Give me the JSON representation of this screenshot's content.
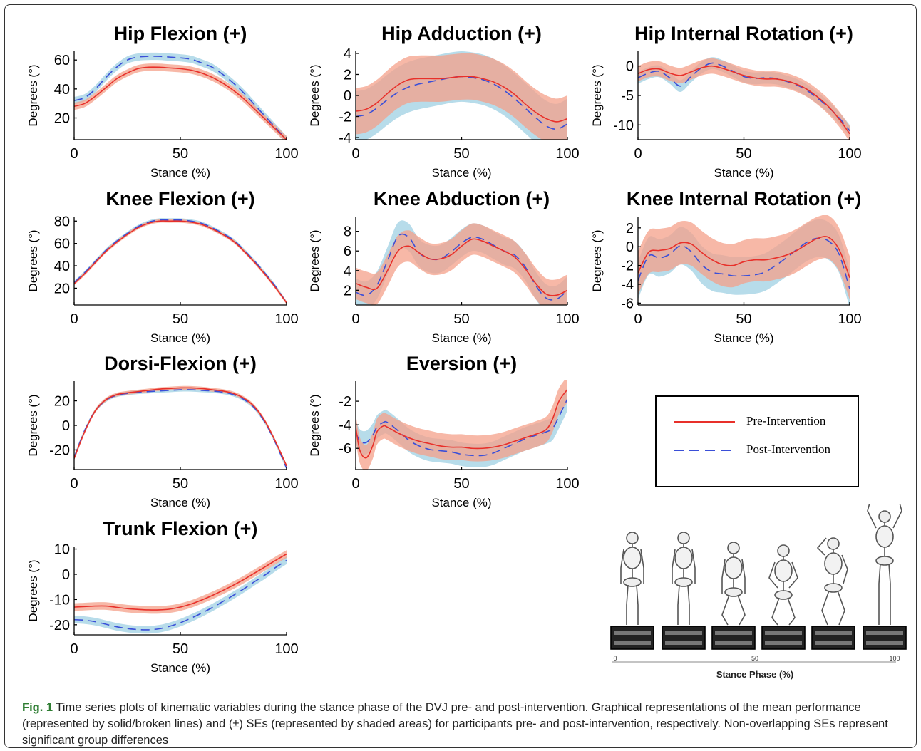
{
  "colors": {
    "pre_line": "#e8302a",
    "pre_band": "#f4a08a",
    "post_line": "#3a4fd8",
    "post_band": "#aad6e6"
  },
  "legend": {
    "pre_label": "Pre-Intervention",
    "post_label": "Post-Intervention"
  },
  "illustration": {
    "axis_label": "Stance Phase (%)",
    "ticks": [
      "0",
      "50",
      "100"
    ]
  },
  "caption": {
    "label": "Fig. 1",
    "text": " Time series plots of kinematic variables during the stance phase of the DVJ pre- and post-intervention. Graphical representations of the mean performance (represented by solid/broken lines) and (±) SEs (represented by shaded areas) for participants pre- and post-intervention, respectively. Non-overlapping SEs represent significant group differences"
  },
  "chart_data": [
    {
      "type": "line",
      "title": "Hip Flexion (+)",
      "xlabel": "Stance (%)",
      "ylabel": "Degrees (°)",
      "xlim": [
        0,
        100
      ],
      "ylim": [
        5,
        66
      ],
      "xticks": [
        0,
        50,
        100
      ],
      "yticks": [
        20,
        40,
        60
      ],
      "x": [
        0,
        5,
        10,
        15,
        20,
        25,
        30,
        35,
        40,
        45,
        50,
        55,
        60,
        65,
        70,
        75,
        80,
        85,
        90,
        95,
        100
      ],
      "series": [
        {
          "name": "Pre-Intervention",
          "values": [
            28,
            30,
            35,
            41,
            47,
            51,
            54,
            55,
            55,
            54.5,
            54,
            53,
            51,
            48,
            44,
            39,
            33,
            26,
            19,
            12,
            5
          ],
          "se": 2.5
        },
        {
          "name": "Post-Intervention",
          "values": [
            32,
            34,
            40,
            48,
            55,
            60,
            62,
            62.5,
            62.5,
            62,
            61.5,
            60.5,
            58,
            55,
            50,
            44,
            37,
            29,
            21,
            13,
            5
          ],
          "se": 2.5
        }
      ]
    },
    {
      "type": "line",
      "title": "Hip Adduction (+)",
      "xlabel": "Stance (%)",
      "ylabel": "Degrees (°)",
      "xlim": [
        0,
        100
      ],
      "ylim": [
        -4.2,
        4.2
      ],
      "xticks": [
        0,
        50,
        100
      ],
      "yticks": [
        -4,
        -2,
        0,
        2,
        4
      ],
      "x": [
        0,
        5,
        10,
        15,
        20,
        25,
        30,
        35,
        40,
        45,
        50,
        55,
        60,
        65,
        70,
        75,
        80,
        85,
        90,
        95,
        100
      ],
      "series": [
        {
          "name": "Pre-Intervention",
          "values": [
            -1.5,
            -1.3,
            -0.7,
            0.2,
            1.0,
            1.5,
            1.6,
            1.6,
            1.6,
            1.7,
            1.8,
            1.8,
            1.6,
            1.3,
            0.8,
            0.1,
            -0.8,
            -1.6,
            -2.2,
            -2.5,
            -2.2
          ],
          "se": 2.2
        },
        {
          "name": "Post-Intervention",
          "values": [
            -2.0,
            -1.8,
            -1.2,
            -0.4,
            0.3,
            0.8,
            1.1,
            1.3,
            1.5,
            1.7,
            1.8,
            1.7,
            1.5,
            1.1,
            0.5,
            -0.3,
            -1.2,
            -2.1,
            -2.9,
            -3.2,
            -2.7
          ],
          "se": 2.4
        }
      ]
    },
    {
      "type": "line",
      "title": "Hip Internal Rotation (+)",
      "xlabel": "Stance (%)",
      "ylabel": "Degrees (°)",
      "xlim": [
        0,
        100
      ],
      "ylim": [
        -12.5,
        2.5
      ],
      "xticks": [
        0,
        50,
        100
      ],
      "yticks": [
        -10,
        -5,
        0
      ],
      "x": [
        0,
        5,
        10,
        15,
        20,
        25,
        30,
        35,
        40,
        45,
        50,
        55,
        60,
        65,
        70,
        75,
        80,
        85,
        90,
        95,
        100
      ],
      "series": [
        {
          "name": "Pre-Intervention",
          "values": [
            -1.3,
            -0.6,
            -0.5,
            -1.2,
            -1.6,
            -1.0,
            -0.3,
            0.0,
            -0.4,
            -1.0,
            -1.6,
            -2.0,
            -2.2,
            -2.2,
            -2.5,
            -3.1,
            -4.0,
            -5.3,
            -6.9,
            -9.0,
            -11.5
          ],
          "se": 1.3
        },
        {
          "name": "Post-Intervention",
          "values": [
            -2.0,
            -1.2,
            -0.9,
            -2.0,
            -3.4,
            -1.8,
            -0.3,
            0.5,
            0.0,
            -0.9,
            -1.8,
            -2.1,
            -2.0,
            -2.1,
            -2.6,
            -3.2,
            -4.2,
            -5.5,
            -7.0,
            -8.8,
            -11.0
          ],
          "se": 1.0
        }
      ]
    },
    {
      "type": "line",
      "title": "Knee Flexion (+)",
      "xlabel": "Stance (%)",
      "ylabel": "Degrees (°)",
      "xlim": [
        0,
        100
      ],
      "ylim": [
        5,
        84
      ],
      "xticks": [
        0,
        50,
        100
      ],
      "yticks": [
        20,
        40,
        60,
        80
      ],
      "x": [
        0,
        5,
        10,
        15,
        20,
        25,
        30,
        35,
        40,
        45,
        50,
        55,
        60,
        65,
        70,
        75,
        80,
        85,
        90,
        95,
        100
      ],
      "series": [
        {
          "name": "Pre-Intervention",
          "values": [
            24,
            33,
            43,
            53,
            61,
            68,
            74,
            78,
            80,
            80,
            80,
            79,
            77,
            73,
            68,
            62,
            53,
            43,
            32,
            20,
            7
          ],
          "se": 1.5
        },
        {
          "name": "Post-Intervention",
          "values": [
            25,
            34,
            44,
            54,
            62,
            69,
            75,
            79,
            81,
            81,
            81,
            80,
            78,
            74,
            69,
            63,
            54,
            44,
            33,
            21,
            7
          ],
          "se": 1.5
        }
      ]
    },
    {
      "type": "line",
      "title": "Knee Abduction (+)",
      "xlabel": "Stance (%)",
      "ylabel": "Degrees (°)",
      "xlim": [
        0,
        100
      ],
      "ylim": [
        0.5,
        9.5
      ],
      "xticks": [
        0,
        50,
        100
      ],
      "yticks": [
        2,
        4,
        6,
        8
      ],
      "x": [
        0,
        5,
        10,
        15,
        20,
        25,
        30,
        35,
        40,
        45,
        50,
        55,
        60,
        65,
        70,
        75,
        80,
        85,
        90,
        95,
        100
      ],
      "series": [
        {
          "name": "Pre-Intervention",
          "values": [
            2.7,
            2.3,
            2.2,
            4.0,
            6.0,
            6.5,
            5.8,
            5.2,
            5.2,
            5.6,
            6.5,
            7.2,
            7.0,
            6.5,
            6.0,
            5.4,
            4.2,
            2.7,
            1.6,
            1.5,
            2.0
          ],
          "se": 1.6
        },
        {
          "name": "Post-Intervention",
          "values": [
            1.8,
            1.5,
            2.5,
            5.0,
            7.5,
            7.4,
            5.8,
            5.2,
            5.2,
            5.9,
            6.8,
            7.4,
            7.2,
            6.6,
            6.0,
            5.6,
            4.4,
            2.5,
            1.2,
            1.1,
            2.0
          ],
          "se": 1.4
        }
      ]
    },
    {
      "type": "line",
      "title": "Knee Internal Rotation (+)",
      "xlabel": "Stance (%)",
      "ylabel": "Degrees (°)",
      "xlim": [
        0,
        100
      ],
      "ylim": [
        -6.2,
        3.2
      ],
      "xticks": [
        0,
        50,
        100
      ],
      "yticks": [
        -6,
        -4,
        -2,
        0,
        2
      ],
      "x": [
        0,
        5,
        10,
        15,
        20,
        25,
        30,
        35,
        40,
        45,
        50,
        55,
        60,
        65,
        70,
        75,
        80,
        85,
        90,
        95,
        100
      ],
      "series": [
        {
          "name": "Pre-Intervention",
          "values": [
            -2.8,
            -0.6,
            -0.4,
            -0.2,
            0.4,
            0.3,
            -0.6,
            -1.4,
            -1.9,
            -2.0,
            -1.6,
            -1.4,
            -1.4,
            -1.2,
            -0.9,
            -0.4,
            0.3,
            0.9,
            1.0,
            -0.3,
            -3.3
          ],
          "se": 2.3
        },
        {
          "name": "Post-Intervention",
          "values": [
            -3.6,
            -1.0,
            -1.2,
            -0.8,
            0.1,
            -0.5,
            -1.9,
            -2.7,
            -2.9,
            -3.1,
            -3.1,
            -3.0,
            -2.7,
            -2.0,
            -1.2,
            -0.3,
            0.5,
            0.9,
            0.6,
            -0.8,
            -4.5
          ],
          "se": 2.0
        }
      ]
    },
    {
      "type": "line",
      "title": "Dorsi-Flexion (+)",
      "xlabel": "Stance (%)",
      "ylabel": "Degrees (°)",
      "xlim": [
        0,
        100
      ],
      "ylim": [
        -36,
        36
      ],
      "xticks": [
        0,
        50,
        100
      ],
      "yticks": [
        -20,
        0,
        20
      ],
      "x": [
        0,
        5,
        10,
        15,
        20,
        25,
        30,
        35,
        40,
        45,
        50,
        55,
        60,
        65,
        70,
        75,
        80,
        85,
        90,
        95,
        100
      ],
      "series": [
        {
          "name": "Pre-Intervention",
          "values": [
            -27,
            -5,
            12,
            21,
            25,
            26.5,
            27.5,
            28.5,
            29.5,
            30,
            30.5,
            30.5,
            30,
            29,
            28,
            26,
            22,
            15,
            3,
            -14,
            -33
          ],
          "se": 1.5
        },
        {
          "name": "Post-Intervention",
          "values": [
            -26,
            -4,
            12,
            20.5,
            24.5,
            26,
            27,
            27.5,
            28,
            28.5,
            29,
            29,
            28.5,
            28,
            27,
            25,
            21,
            14,
            2,
            -15,
            -35
          ],
          "se": 1.5
        }
      ]
    },
    {
      "type": "line",
      "title": "Eversion (+)",
      "xlabel": "Stance (%)",
      "ylabel": "Degrees (°)",
      "xlim": [
        0,
        100
      ],
      "ylim": [
        -7.8,
        -0.3
      ],
      "xticks": [
        0,
        50,
        100
      ],
      "yticks": [
        -6,
        -4,
        -2
      ],
      "x": [
        0,
        2,
        5,
        8,
        10,
        13,
        15,
        20,
        25,
        30,
        35,
        40,
        45,
        50,
        55,
        60,
        65,
        70,
        75,
        80,
        85,
        90,
        93,
        96,
        100
      ],
      "series": [
        {
          "name": "Pre-Intervention",
          "values": [
            -4.2,
            -6.2,
            -6.8,
            -5.8,
            -4.6,
            -4.1,
            -4.2,
            -4.7,
            -5.1,
            -5.4,
            -5.6,
            -5.8,
            -5.9,
            -5.9,
            -6.0,
            -6.0,
            -5.9,
            -5.7,
            -5.4,
            -5.1,
            -4.8,
            -4.4,
            -3.5,
            -2.0,
            -1.0
          ],
          "se": 1.1
        },
        {
          "name": "Post-Intervention",
          "values": [
            -4.6,
            -5.4,
            -5.5,
            -4.9,
            -4.2,
            -3.8,
            -3.8,
            -4.5,
            -5.3,
            -5.8,
            -6.1,
            -6.2,
            -6.3,
            -6.5,
            -6.6,
            -6.6,
            -6.4,
            -6.0,
            -5.6,
            -5.2,
            -4.9,
            -4.6,
            -4.3,
            -3.3,
            -1.8
          ],
          "se": 1.0
        }
      ]
    },
    {
      "type": "line",
      "title": "Trunk Flexion (+)",
      "xlabel": "Stance (%)",
      "ylabel": "Degrees (°)",
      "xlim": [
        0,
        100
      ],
      "ylim": [
        -24,
        11
      ],
      "xticks": [
        0,
        50,
        100
      ],
      "yticks": [
        -20,
        -10,
        0,
        10
      ],
      "x": [
        0,
        5,
        10,
        15,
        20,
        25,
        30,
        35,
        40,
        45,
        50,
        55,
        60,
        65,
        70,
        75,
        80,
        85,
        90,
        95,
        100
      ],
      "series": [
        {
          "name": "Pre-Intervention",
          "values": [
            -13,
            -12.8,
            -12.6,
            -12.6,
            -13.1,
            -13.6,
            -13.9,
            -14.1,
            -14.1,
            -13.8,
            -13.0,
            -11.8,
            -10.2,
            -8.4,
            -6.4,
            -4.3,
            -2.0,
            0.5,
            3.0,
            5.6,
            8.0
          ],
          "se": 1.5
        },
        {
          "name": "Post-Intervention",
          "values": [
            -18,
            -18.2,
            -18.8,
            -19.8,
            -20.8,
            -21.5,
            -21.9,
            -22.0,
            -21.6,
            -20.6,
            -19.2,
            -17.4,
            -15.4,
            -13.2,
            -10.8,
            -8.3,
            -5.7,
            -2.9,
            -0.2,
            2.8,
            5.5
          ],
          "se": 1.5
        }
      ]
    }
  ]
}
